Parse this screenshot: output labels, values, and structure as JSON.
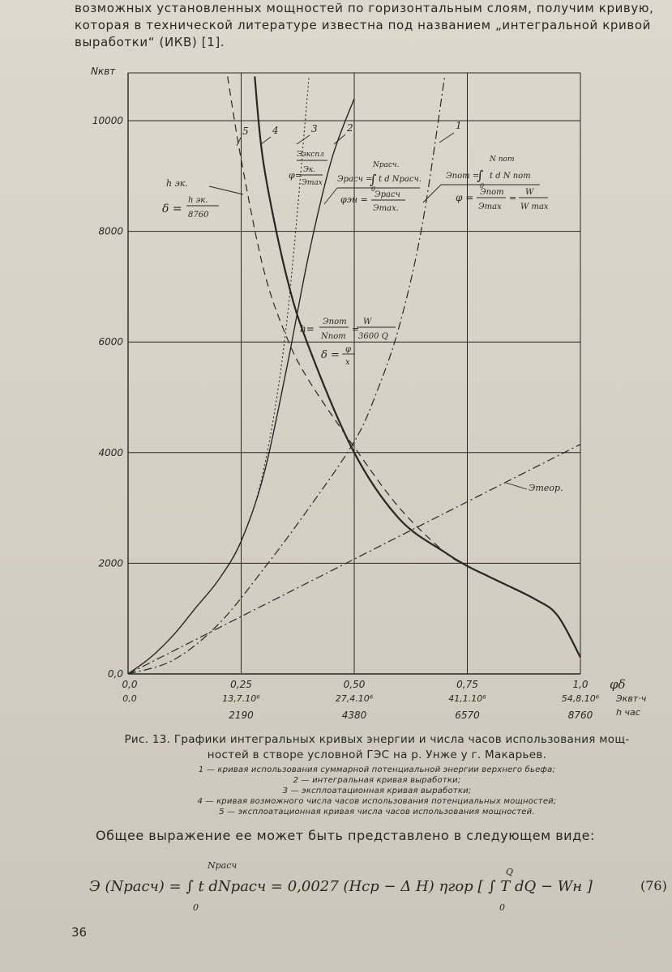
{
  "intro": {
    "line1": "возможных установленных мощностей по горизонтальным слоям, получим кривую,",
    "line2": "которая в технической литературе известна под названием „интегральной кривой",
    "line3": "выработки“ (ИКВ) [1]."
  },
  "chart_data": {
    "type": "line",
    "ylabel": "Nквт",
    "y_ticks": [
      "0,0",
      "2000",
      "4000",
      "6000",
      "8000",
      "10000"
    ],
    "y_tick_values": [
      0,
      2000,
      4000,
      6000,
      8000,
      10000
    ],
    "ylim": [
      0,
      10500
    ],
    "xlim": [
      0,
      1.0
    ],
    "x_axis_rows": [
      {
        "label": "φδ",
        "ticks": [
          "0,0",
          "0,25",
          "0,50",
          "0,75",
          "1,0"
        ]
      },
      {
        "label": "Эквт·ч",
        "ticks": [
          "0,0",
          "13,7.10⁶",
          "27,4.10⁶",
          "41,1.10⁶",
          "54,8.10⁶"
        ]
      },
      {
        "label": "h час",
        "ticks": [
          "",
          "2190",
          "4380",
          "6570",
          "8760"
        ]
      }
    ],
    "x_tick_values": [
      0,
      0.25,
      0.5,
      0.75,
      1.0
    ],
    "grid": true,
    "series": [
      {
        "name": "1",
        "style": "dash-dot",
        "x": [
          0.0,
          0.1,
          0.2,
          0.3,
          0.4,
          0.5,
          0.55,
          0.6,
          0.65,
          0.7
        ],
        "y": [
          0,
          250,
          900,
          1900,
          3000,
          4200,
          5100,
          6300,
          8100,
          10800
        ]
      },
      {
        "name": "2",
        "style": "solid",
        "x": [
          0.0,
          0.05,
          0.1,
          0.15,
          0.2,
          0.25,
          0.3,
          0.35,
          0.4,
          0.45,
          0.5
        ],
        "y": [
          0,
          300,
          700,
          1200,
          1700,
          2400,
          3600,
          5500,
          7600,
          9300,
          10400
        ]
      },
      {
        "name": "3",
        "style": "dotted",
        "x": [
          0.0,
          0.05,
          0.1,
          0.15,
          0.2,
          0.25,
          0.3,
          0.35,
          0.4
        ],
        "y": [
          0,
          300,
          700,
          1200,
          1700,
          2400,
          3700,
          6300,
          10800
        ]
      },
      {
        "name": "4",
        "style": "solid-thick",
        "x": [
          0.28,
          0.3,
          0.35,
          0.4,
          0.5,
          0.6,
          0.7,
          0.75,
          0.8,
          0.9,
          0.95,
          1.0
        ],
        "y": [
          10800,
          9200,
          7200,
          5900,
          4000,
          2800,
          2200,
          1950,
          1750,
          1350,
          1050,
          300
        ]
      },
      {
        "name": "5",
        "style": "dashed",
        "x": [
          0.22,
          0.25,
          0.3,
          0.35,
          0.4,
          0.5,
          0.6,
          0.7,
          0.75
        ],
        "y": [
          10800,
          9300,
          7300,
          6100,
          5300,
          4100,
          3000,
          2200,
          1950
        ]
      },
      {
        "name": "Этеор.",
        "style": "dash-dot",
        "x": [
          0.0,
          1.0
        ],
        "y": [
          0,
          4150
        ]
      }
    ],
    "annotations": {
      "curve_nums": [
        "1",
        "2",
        "3",
        "4",
        "5"
      ],
      "h_eq": {
        "lhs": "h эк.",
        "delta": "δ =",
        "num": "h эк.",
        "den": "8760"
      },
      "phi_expl": {
        "top": "Ээкспл",
        "phi": "φ=",
        "num": "Эк.",
        "den": "Эmax"
      },
      "e_rasch": {
        "lhs": "Эрасч =",
        "int": "∫",
        "upper": "Nрасч.",
        "lower": "0",
        "body": "t d Nрасч.",
        "phi": "φэн =",
        "num": "Эрасч",
        "den": "Эmax."
      },
      "e_pot": {
        "lhs": "Эпот =",
        "int": "∫",
        "upper": "N пот",
        "lower": "0",
        "body": "t d  N пот",
        "phi": "φ =",
        "num1": "Эпот",
        "den1": "Эmax",
        "eq": "=",
        "num2": "W",
        "den2": "W max"
      },
      "h_main": {
        "h": "h=",
        "num1": "Эпот",
        "den1": "Nпот",
        "eq": "=",
        "num2": "W",
        "den2": "3600 Q",
        "delta": "δ =",
        "num3": "φ",
        "den3": "x"
      },
      "e_teor": "Этеор."
    }
  },
  "caption": {
    "title": "Рис. 13. Графики интегральных кривых энергии и числа часов использования мощ-",
    "title2": "ностей в створе условной ГЭС на р. Унже у г. Макарьев."
  },
  "legend": [
    "1 — кривая использования суммарной потенциальной энергии верхнего бьефа;",
    "2 — интегральная кривая выработки;",
    "3 — эксплоатационная кривая выработки;",
    "4 — кривая возможного числа часов использования потенциальных мощностей;",
    "5 — эксплоатационная кривая числа часов использования мощностей."
  ],
  "body_text": "Общее выражение ее может быть представлено в следующем виде:",
  "formula": {
    "main": "Э (Nрасч) = ∫  t dNрасч = 0,0027 (Hср − Δ H) ηгор [ ∫ T dQ − Wн ]",
    "upper": "Nрасч",
    "lower": "0",
    "upper2": "Q",
    "lower2": "0",
    "eqno": "(76)"
  },
  "page_number": "36"
}
